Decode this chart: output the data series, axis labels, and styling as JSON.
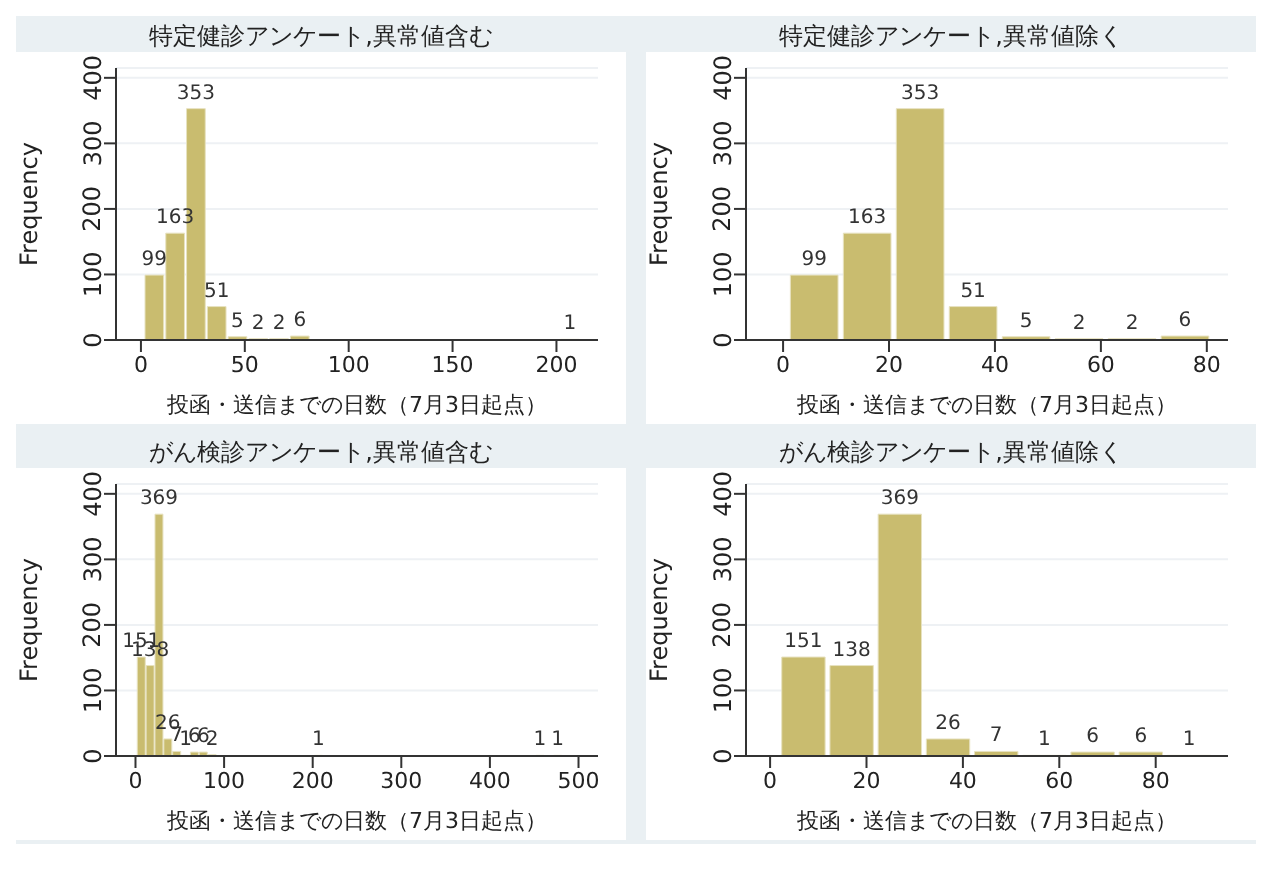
{
  "chart_data": [
    {
      "type": "histogram",
      "title": "特定健診アンケート,異常値含む",
      "xlabel": "投函・送信までの日数（7月3日起点）",
      "ylabel": "Frequency",
      "color": "#c9bc6f",
      "bins": [
        1,
        11,
        21,
        31,
        41,
        51,
        61,
        71,
        81,
        91,
        101,
        111,
        121,
        131,
        141,
        151,
        161,
        171,
        181,
        191,
        201,
        211
      ],
      "values": [
        99,
        163,
        353,
        51,
        5,
        2,
        2,
        6,
        0,
        0,
        0,
        0,
        0,
        0,
        0,
        0,
        0,
        0,
        0,
        0,
        1
      ],
      "value_labels": [
        "99",
        "163",
        "353",
        "51",
        "5",
        "2",
        "2",
        "6",
        null,
        null,
        null,
        null,
        null,
        null,
        null,
        null,
        null,
        null,
        null,
        null,
        "1"
      ],
      "xlim": [
        -12,
        220
      ],
      "xticks": [
        0,
        50,
        100,
        150,
        200
      ],
      "ylim": [
        0,
        415
      ],
      "yticks": [
        0,
        100,
        200,
        300,
        400
      ],
      "grid": "y"
    },
    {
      "type": "histogram",
      "title": "特定健診アンケート,異常値除く",
      "xlabel": "投函・送信までの日数（7月3日起点）",
      "ylabel": "Frequency",
      "color": "#c9bc6f",
      "bins": [
        1,
        11,
        21,
        31,
        41,
        51,
        61,
        71,
        81
      ],
      "values": [
        99,
        163,
        353,
        51,
        5,
        2,
        2,
        6
      ],
      "value_labels": [
        "99",
        "163",
        "353",
        "51",
        "5",
        "2",
        "2",
        "6"
      ],
      "xlim": [
        -7,
        84
      ],
      "xticks": [
        0,
        20,
        40,
        60,
        80
      ],
      "ylim": [
        0,
        415
      ],
      "yticks": [
        0,
        100,
        200,
        300,
        400
      ],
      "grid": "y"
    },
    {
      "type": "histogram",
      "title": "がん検診アンケート,異常値含む",
      "xlabel": "投函・送信までの日数（7月3日起点）",
      "ylabel": "Frequency",
      "color": "#c9bc6f",
      "bins": [
        2,
        12,
        22,
        32,
        42,
        52,
        62,
        72,
        82,
        92,
        102,
        112,
        122,
        132,
        142,
        152,
        162,
        172,
        182,
        192,
        202,
        212,
        222,
        232,
        242,
        252,
        262,
        272,
        282,
        292,
        302,
        312,
        322,
        332,
        342,
        352,
        362,
        372,
        382,
        392,
        402,
        412,
        422,
        432,
        442,
        452,
        462,
        472,
        482
      ],
      "values": [
        151,
        138,
        369,
        26,
        7,
        1,
        6,
        6,
        2,
        0,
        0,
        0,
        0,
        0,
        0,
        0,
        0,
        0,
        0,
        0,
        1,
        0,
        0,
        0,
        0,
        0,
        0,
        0,
        0,
        0,
        0,
        0,
        0,
        0,
        0,
        0,
        0,
        0,
        0,
        0,
        0,
        0,
        0,
        0,
        0,
        1,
        0,
        1
      ],
      "value_labels": [
        "151",
        "138",
        "369",
        "26",
        "7",
        "1",
        "6",
        "6",
        "2",
        null,
        null,
        null,
        null,
        null,
        null,
        null,
        null,
        null,
        null,
        null,
        "1",
        null,
        null,
        null,
        null,
        null,
        null,
        null,
        null,
        null,
        null,
        null,
        null,
        null,
        null,
        null,
        null,
        null,
        null,
        null,
        null,
        null,
        null,
        null,
        null,
        "1",
        null,
        "1"
      ],
      "xlim": [
        -22,
        522
      ],
      "xticks": [
        0,
        100,
        200,
        300,
        400,
        500
      ],
      "ylim": [
        0,
        415
      ],
      "yticks": [
        0,
        100,
        200,
        300,
        400
      ],
      "grid": "y"
    },
    {
      "type": "histogram",
      "title": "がん検診アンケート,異常値除く",
      "xlabel": "投函・送信までの日数（7月3日起点）",
      "ylabel": "Frequency",
      "color": "#c9bc6f",
      "bins": [
        2,
        12,
        22,
        32,
        42,
        52,
        62,
        72,
        82,
        92
      ],
      "values": [
        151,
        138,
        369,
        26,
        7,
        1,
        6,
        6,
        1
      ],
      "value_labels": [
        "151",
        "138",
        "369",
        "26",
        "7",
        "1",
        "6",
        "6",
        "1"
      ],
      "xlim": [
        -5,
        95
      ],
      "xticks": [
        0,
        20,
        40,
        60,
        80
      ],
      "ylim": [
        0,
        415
      ],
      "yticks": [
        0,
        100,
        200,
        300,
        400
      ],
      "grid": "y"
    }
  ]
}
